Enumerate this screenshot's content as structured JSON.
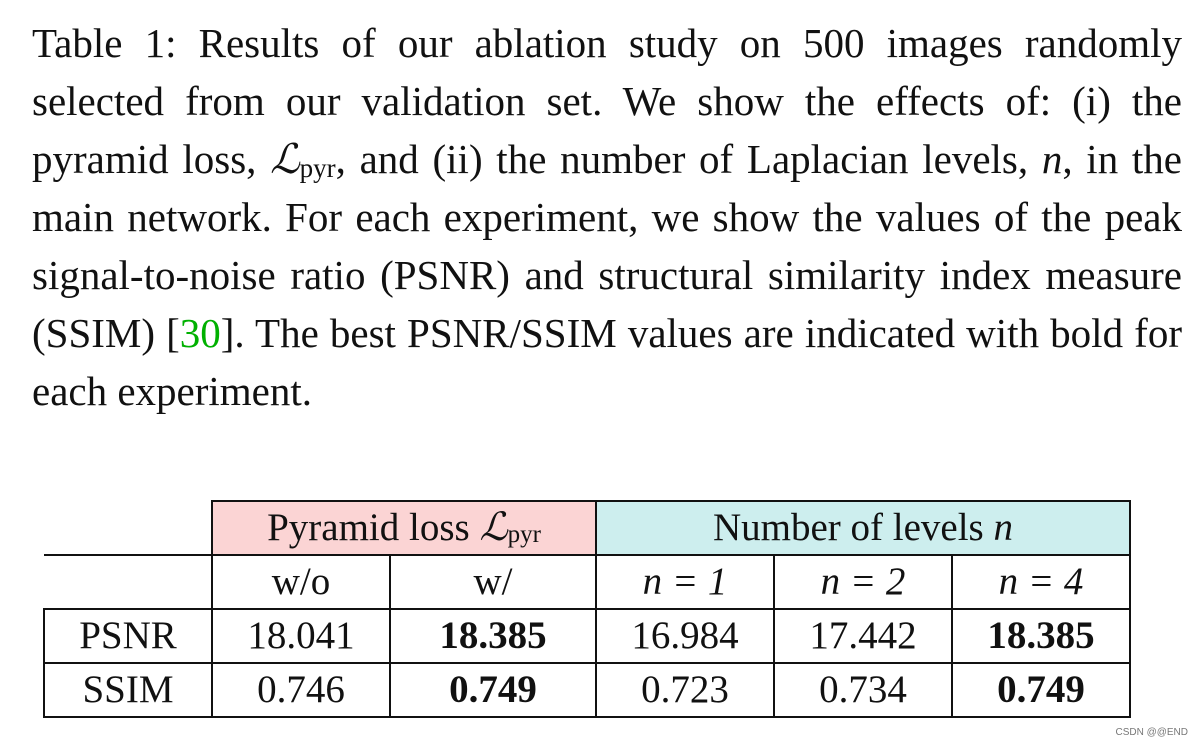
{
  "caption": {
    "part1": "Table 1: Results of our ablation study on 500 images randomly selected from our validation set. We show the effects of: (i) the pyramid loss, ",
    "loss_symbol": "ℒ",
    "loss_sub": "pyr",
    "part2": ", and (ii) the number of Laplacian levels, ",
    "n_symbol": "n",
    "part3": ", in the main network. For each experiment, we show the values of the peak signal-to-noise ratio (PSNR) and structural similarity index measure (SSIM) [",
    "citation": "30",
    "part4": "]. The best PSNR/SSIM values are indicated with bold for each experiment."
  },
  "table": {
    "group_headers": {
      "pyramid_label": "Pyramid loss ",
      "pyramid_symbol": "ℒ",
      "pyramid_sub": "pyr",
      "levels_label": "Number of levels ",
      "levels_symbol": "n"
    },
    "column_headers": [
      "w/o",
      "w/",
      "n = 1",
      "n = 2",
      "n = 4"
    ],
    "rows": [
      {
        "label": "PSNR",
        "values": [
          "18.041",
          "18.385",
          "16.984",
          "17.442",
          "18.385"
        ]
      },
      {
        "label": "SSIM",
        "values": [
          "0.746",
          "0.749",
          "0.723",
          "0.734",
          "0.749"
        ]
      }
    ]
  },
  "watermark": "CSDN @@END"
}
